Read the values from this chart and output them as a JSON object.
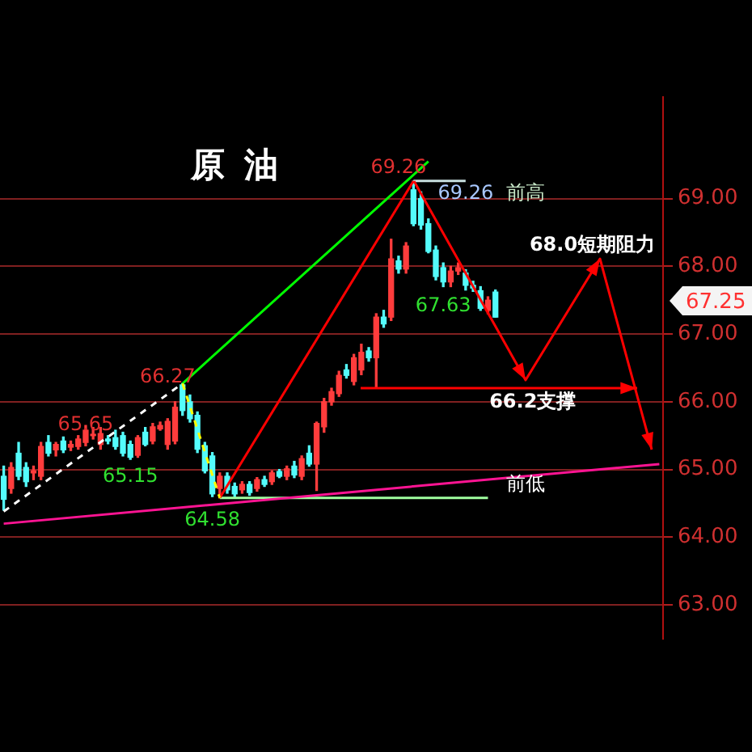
{
  "chart_data": {
    "type": "candlestick",
    "title": "原油",
    "tick_labels": "y",
    "grid": "y",
    "categories": [
      null,
      null,
      null,
      null,
      null,
      null,
      null,
      null,
      null,
      null,
      null,
      null,
      null,
      null,
      null,
      null,
      null,
      null,
      null,
      null,
      null,
      null,
      null,
      null,
      null,
      null,
      null,
      null,
      null,
      null,
      null,
      null,
      null,
      null,
      null,
      null,
      null,
      null,
      null,
      null,
      null,
      null,
      null,
      null,
      null,
      null,
      null,
      null,
      null,
      null,
      null,
      null,
      null,
      null,
      null,
      null,
      null,
      null,
      null,
      null,
      null,
      null,
      null,
      null,
      null,
      null,
      null,
      null,
      null,
      null,
      null,
      null,
      null,
      null,
      null,
      null,
      null,
      null,
      null,
      null,
      null,
      null,
      null,
      null,
      null,
      null,
      null,
      null,
      null
    ],
    "ohlc": [
      [
        64.9,
        65.05,
        64.4,
        64.56
      ],
      [
        64.72,
        65.1,
        64.65,
        65.03
      ],
      [
        65.24,
        65.4,
        64.85,
        64.9
      ],
      [
        65.03,
        65.1,
        64.75,
        64.82
      ],
      [
        64.95,
        65.05,
        64.85,
        64.98
      ],
      [
        64.9,
        65.4,
        64.85,
        65.34
      ],
      [
        65.4,
        65.5,
        65.2,
        65.24
      ],
      [
        65.29,
        65.4,
        65.2,
        65.37
      ],
      [
        65.42,
        65.48,
        65.25,
        65.29
      ],
      [
        65.33,
        65.42,
        65.28,
        65.37
      ],
      [
        65.34,
        65.5,
        65.3,
        65.45
      ],
      [
        65.4,
        65.65,
        65.35,
        65.58
      ],
      [
        65.5,
        65.62,
        65.45,
        65.52
      ],
      [
        65.37,
        65.62,
        65.3,
        65.53
      ],
      [
        65.45,
        65.5,
        65.38,
        65.42
      ],
      [
        65.47,
        65.58,
        65.3,
        65.34
      ],
      [
        65.5,
        65.55,
        65.2,
        65.24
      ],
      [
        65.37,
        65.42,
        65.15,
        65.18
      ],
      [
        65.21,
        65.5,
        65.18,
        65.47
      ],
      [
        65.55,
        65.62,
        65.35,
        65.37
      ],
      [
        65.42,
        65.68,
        65.38,
        65.63
      ],
      [
        65.6,
        65.7,
        65.58,
        65.65
      ],
      [
        65.37,
        65.75,
        65.3,
        65.71
      ],
      [
        65.42,
        66.0,
        65.38,
        65.92
      ],
      [
        66.25,
        66.27,
        65.8,
        65.87
      ],
      [
        66.0,
        66.1,
        65.7,
        65.75
      ],
      [
        65.8,
        65.85,
        65.25,
        65.3
      ],
      [
        65.35,
        65.4,
        64.95,
        64.98
      ],
      [
        65.2,
        65.25,
        64.6,
        64.64
      ],
      [
        64.72,
        64.95,
        64.58,
        64.9
      ],
      [
        64.9,
        64.95,
        64.65,
        64.7
      ],
      [
        64.75,
        64.8,
        64.6,
        64.64
      ],
      [
        64.7,
        64.82,
        64.65,
        64.78
      ],
      [
        64.78,
        64.82,
        64.62,
        64.66
      ],
      [
        64.72,
        64.88,
        64.68,
        64.85
      ],
      [
        64.85,
        64.9,
        64.75,
        64.78
      ],
      [
        64.82,
        64.98,
        64.78,
        64.95
      ],
      [
        64.97,
        65.0,
        64.88,
        64.9
      ],
      [
        64.9,
        65.05,
        64.85,
        65.01
      ],
      [
        65.05,
        65.12,
        64.88,
        64.92
      ],
      [
        64.9,
        65.2,
        64.85,
        65.16
      ],
      [
        65.24,
        65.35,
        65.05,
        65.08
      ],
      [
        65.08,
        65.7,
        64.69,
        65.68
      ],
      [
        65.63,
        66.05,
        65.55,
        66.0
      ],
      [
        66.0,
        66.2,
        65.95,
        66.15
      ],
      [
        66.12,
        66.45,
        66.08,
        66.39
      ],
      [
        66.47,
        66.55,
        66.35,
        66.39
      ],
      [
        66.3,
        66.7,
        66.25,
        66.65
      ],
      [
        66.47,
        66.85,
        66.4,
        66.73
      ],
      [
        66.75,
        66.8,
        66.6,
        66.65
      ],
      [
        66.65,
        67.3,
        66.2,
        67.25
      ],
      [
        67.25,
        67.35,
        67.1,
        67.15
      ],
      [
        67.25,
        68.4,
        67.2,
        68.11
      ],
      [
        68.08,
        68.15,
        67.9,
        67.96
      ],
      [
        67.96,
        68.35,
        67.9,
        68.3
      ],
      [
        69.13,
        69.26,
        68.6,
        68.63
      ],
      [
        69.0,
        69.1,
        68.55,
        68.61
      ],
      [
        68.63,
        68.7,
        68.2,
        68.22
      ],
      [
        68.24,
        68.3,
        67.8,
        67.85
      ],
      [
        67.98,
        68.05,
        67.7,
        67.77
      ],
      [
        67.77,
        68.0,
        67.7,
        67.93
      ],
      [
        67.93,
        68.05,
        67.88,
        67.98
      ],
      [
        67.9,
        67.95,
        67.65,
        67.72
      ],
      [
        67.72,
        67.78,
        67.63,
        67.68
      ],
      [
        67.64,
        67.7,
        67.35,
        67.38
      ],
      [
        67.35,
        67.55,
        67.3,
        67.5
      ],
      [
        67.62,
        67.65,
        67.25,
        67.25
      ],
      null,
      null,
      null,
      null,
      null,
      null,
      null,
      null,
      null,
      null,
      null,
      null,
      null,
      null,
      null,
      null,
      null,
      null,
      null,
      null,
      null,
      null
    ],
    "colors": [
      "#54fcfc",
      "#ff3c3c",
      "#54fcfc",
      "#54fcfc",
      "#ff3c3c",
      "#ff3c3c",
      "#54fcfc",
      "#ff3c3c",
      "#54fcfc",
      "#ff3c3c",
      "#ff3c3c",
      "#ff3c3c",
      "#ff3c3c",
      "#ff3c3c",
      "#54fcfc",
      "#54fcfc",
      "#54fcfc",
      "#54fcfc",
      "#ff3c3c",
      "#54fcfc",
      "#ff3c3c",
      "#ff3c3c",
      "#ff3c3c",
      "#ff3c3c",
      "#54fcfc",
      "#54fcfc",
      "#54fcfc",
      "#54fcfc",
      "#54fcfc",
      "#ff3c3c",
      "#54fcfc",
      "#54fcfc",
      "#ff3c3c",
      "#54fcfc",
      "#ff3c3c",
      "#54fcfc",
      "#ff3c3c",
      "#54fcfc",
      "#ff3c3c",
      "#54fcfc",
      "#ff3c3c",
      "#54fcfc",
      "#ff3c3c",
      "#ff3c3c",
      "#ff3c3c",
      "#ff3c3c",
      "#54fcfc",
      "#ff3c3c",
      "#ff3c3c",
      "#54fcfc",
      "#ff3c3c",
      "#54fcfc",
      "#ff3c3c",
      "#54fcfc",
      "#ff3c3c",
      "#54fcfc",
      "#54fcfc",
      "#54fcfc",
      "#54fcfc",
      "#54fcfc",
      "#ff3c3c",
      "#ff3c3c",
      "#54fcfc",
      "#54fcfc",
      "#54fcfc",
      "#ff3c3c",
      "#54fcfc",
      null,
      null,
      null,
      null,
      null,
      null,
      null,
      null,
      null,
      null,
      null,
      null,
      null,
      null,
      null,
      null,
      null,
      null,
      null,
      null,
      null,
      null
    ],
    "series": [
      {
        "type": "line",
        "color": "#ffffff",
        "line_style": "dashed",
        "values": [
          64.38,
          null,
          null,
          null,
          null,
          null,
          null,
          null,
          null,
          null,
          null,
          null,
          null,
          null,
          null,
          null,
          null,
          null,
          null,
          null,
          null,
          null,
          null,
          null,
          66.27,
          null,
          null,
          null,
          null,
          null,
          null,
          null,
          null,
          null,
          null,
          null,
          null,
          null,
          null,
          null,
          null,
          null,
          null,
          null,
          null,
          null,
          null,
          null,
          null,
          null,
          null,
          null,
          null,
          null,
          null,
          null,
          null,
          null,
          null,
          null,
          null,
          null,
          null,
          null,
          null,
          null,
          null,
          null,
          null,
          null,
          null,
          null,
          null,
          null,
          null,
          null,
          null,
          null,
          null,
          null,
          null,
          null,
          null,
          null,
          null,
          null,
          null,
          null,
          null
        ]
      },
      {
        "type": "line",
        "color": "#ffff00",
        "line_style": "dashed",
        "values": [
          null,
          null,
          null,
          null,
          null,
          null,
          null,
          null,
          null,
          null,
          null,
          null,
          null,
          null,
          null,
          null,
          null,
          null,
          null,
          null,
          null,
          null,
          null,
          null,
          66.27,
          null,
          null,
          null,
          null,
          64.58,
          null,
          null,
          null,
          null,
          null,
          null,
          null,
          null,
          null,
          null,
          null,
          null,
          null,
          null,
          null,
          null,
          null,
          null,
          null,
          null,
          null,
          null,
          null,
          null,
          null,
          null,
          null,
          null,
          null,
          null,
          null,
          null,
          null,
          null,
          null,
          null,
          null,
          null,
          null,
          null,
          null,
          null,
          null,
          null,
          null,
          null,
          null,
          null,
          null,
          null,
          null,
          null,
          null,
          null,
          null,
          null,
          null,
          null,
          null
        ]
      },
      {
        "type": "line",
        "color": "#00ff00",
        "line_style": "solid",
        "values": [
          null,
          null,
          null,
          null,
          null,
          null,
          null,
          null,
          null,
          null,
          null,
          null,
          null,
          null,
          null,
          null,
          null,
          null,
          null,
          null,
          null,
          null,
          null,
          null,
          66.27,
          null,
          null,
          null,
          null,
          null,
          null,
          null,
          null,
          null,
          null,
          null,
          null,
          null,
          null,
          null,
          null,
          null,
          null,
          null,
          null,
          null,
          null,
          null,
          null,
          null,
          null,
          null,
          null,
          null,
          null,
          null,
          null,
          69.55,
          null,
          null,
          null,
          null,
          null,
          null,
          null,
          null,
          null,
          null,
          null,
          null,
          null,
          null,
          null,
          null,
          null,
          null,
          null,
          null,
          null,
          null,
          null,
          null,
          null,
          null,
          null,
          null,
          null,
          null,
          null
        ]
      },
      {
        "type": "line",
        "color": "#ff0000",
        "line_style": "solid",
        "values": [
          null,
          null,
          null,
          null,
          null,
          null,
          null,
          null,
          null,
          null,
          null,
          null,
          null,
          null,
          null,
          null,
          null,
          null,
          null,
          null,
          null,
          null,
          null,
          null,
          null,
          null,
          null,
          null,
          null,
          64.58,
          null,
          null,
          null,
          null,
          null,
          null,
          null,
          null,
          null,
          null,
          null,
          null,
          null,
          null,
          null,
          null,
          null,
          null,
          null,
          null,
          null,
          null,
          null,
          null,
          null,
          69.26,
          null,
          null,
          null,
          null,
          null,
          null,
          null,
          null,
          null,
          null,
          null,
          null,
          null,
          null,
          null,
          null,
          null,
          null,
          null,
          null,
          null,
          null,
          null,
          null,
          null,
          null,
          null,
          null,
          null,
          null,
          null,
          null,
          null
        ]
      },
      {
        "type": "line",
        "color": "#ff1493",
        "line_style": "solid",
        "values": [
          64.2,
          null,
          null,
          null,
          null,
          null,
          null,
          null,
          null,
          null,
          null,
          null,
          null,
          null,
          null,
          null,
          null,
          null,
          null,
          null,
          null,
          null,
          null,
          null,
          null,
          null,
          null,
          null,
          null,
          null,
          null,
          null,
          null,
          null,
          null,
          null,
          null,
          null,
          null,
          null,
          null,
          null,
          null,
          null,
          null,
          null,
          null,
          null,
          null,
          null,
          null,
          null,
          null,
          null,
          null,
          null,
          null,
          null,
          null,
          null,
          null,
          null,
          null,
          null,
          null,
          null,
          null,
          null,
          null,
          null,
          null,
          null,
          null,
          null,
          null,
          null,
          null,
          null,
          null,
          null,
          null,
          null,
          null,
          null,
          null,
          null,
          null,
          null,
          65.08
        ]
      },
      {
        "type": "line",
        "color": "#c8e0e0",
        "line_style": "solid",
        "values": [
          null,
          null,
          null,
          null,
          null,
          null,
          null,
          null,
          null,
          null,
          null,
          null,
          null,
          null,
          null,
          null,
          null,
          null,
          null,
          null,
          null,
          null,
          null,
          null,
          null,
          null,
          null,
          null,
          null,
          null,
          null,
          null,
          null,
          null,
          null,
          null,
          null,
          null,
          null,
          null,
          null,
          null,
          null,
          null,
          null,
          null,
          null,
          null,
          null,
          null,
          null,
          null,
          null,
          null,
          null,
          69.26,
          null,
          null,
          null,
          null,
          null,
          null,
          69.26,
          null,
          null,
          null,
          null,
          null,
          null,
          null,
          null,
          null,
          null,
          null,
          null,
          null,
          null,
          null,
          null,
          null,
          null,
          null,
          null,
          null,
          null,
          null,
          null,
          null,
          null
        ]
      },
      {
        "type": "line",
        "color": "#a0ffa0",
        "line_style": "solid",
        "values": [
          null,
          null,
          null,
          null,
          null,
          null,
          null,
          null,
          null,
          null,
          null,
          null,
          null,
          null,
          null,
          null,
          null,
          null,
          null,
          null,
          null,
          null,
          null,
          null,
          null,
          null,
          null,
          null,
          null,
          64.58,
          null,
          null,
          null,
          null,
          null,
          null,
          null,
          null,
          null,
          null,
          null,
          null,
          null,
          null,
          null,
          null,
          null,
          null,
          null,
          null,
          null,
          null,
          null,
          null,
          null,
          null,
          null,
          null,
          null,
          null,
          null,
          null,
          null,
          null,
          null,
          64.58,
          null,
          null,
          null,
          null,
          null,
          null,
          null,
          null,
          null,
          null,
          null,
          null,
          null,
          null,
          null,
          null,
          null,
          null,
          null,
          null,
          null,
          null,
          null
        ]
      }
    ],
    "ylim": [
      62.5,
      70.5
    ],
    "yticks": [
      {
        "value": 63,
        "label": "63.00"
      },
      {
        "value": 64,
        "label": "64.00"
      },
      {
        "value": 65,
        "label": "65.00"
      },
      {
        "value": 66,
        "label": "66.00"
      },
      {
        "value": 67,
        "label": "67.00"
      },
      {
        "value": 68,
        "label": "68.00"
      },
      {
        "value": 69,
        "label": "69.00"
      }
    ],
    "annotations": [
      {
        "text": "65.65",
        "y": 65.65
      },
      {
        "text": "65.15",
        "y": 65.15
      },
      {
        "text": "66.27",
        "y": 66.27
      },
      {
        "text": "64.58",
        "y": 64.58
      },
      {
        "text": "69.26",
        "y": 69.26
      },
      {
        "text": "69.26",
        "y": 69.26
      },
      "前高",
      {
        "text": "67.63",
        "y": 67.63
      },
      "68.0短期阻力",
      "66.2支撑",
      "前低",
      "67.25"
    ]
  }
}
